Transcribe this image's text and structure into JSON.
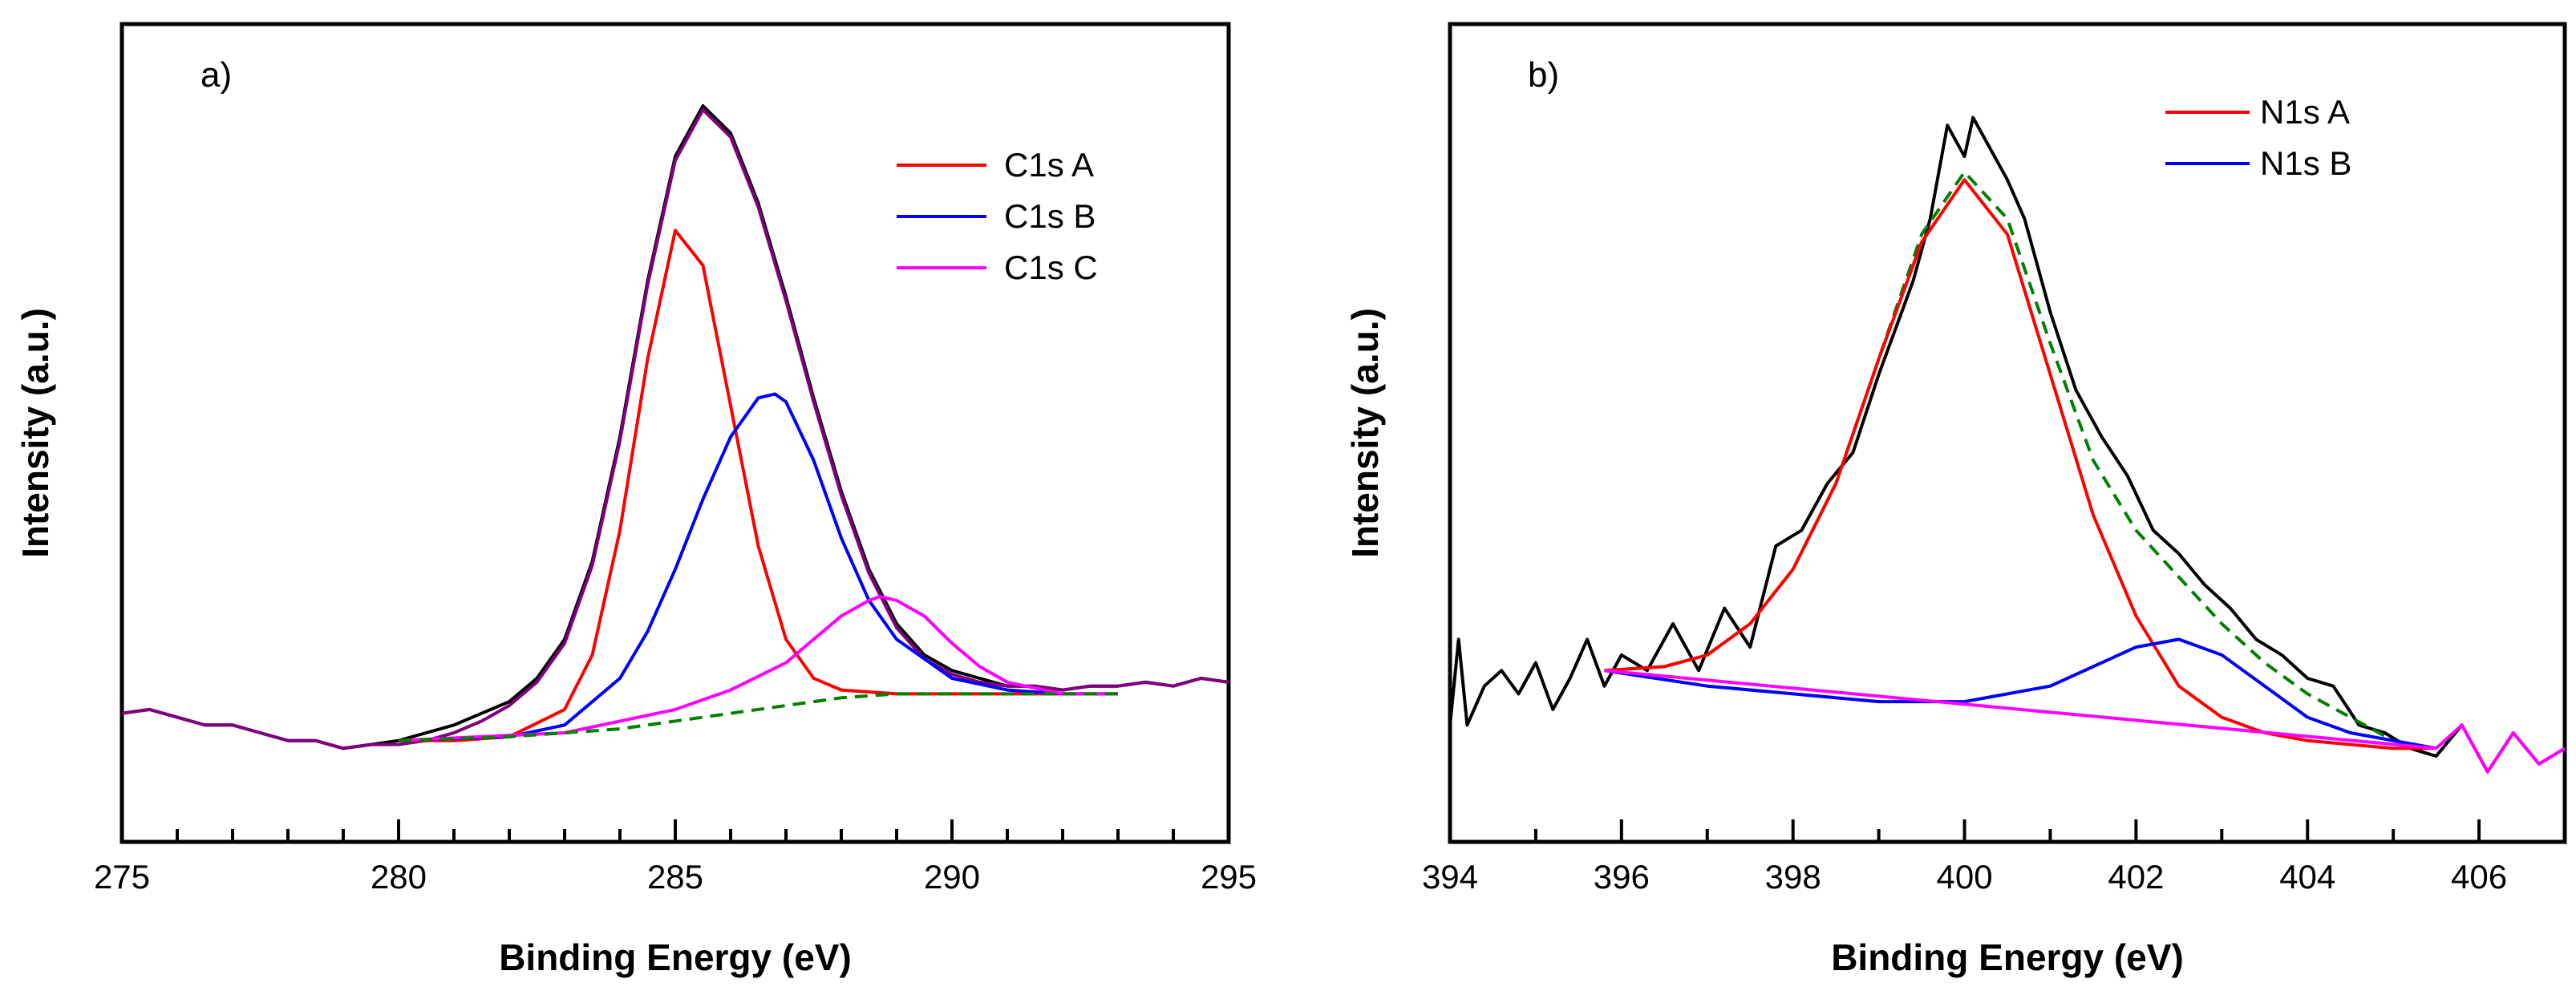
{
  "chart_data": [
    {
      "id": "a",
      "type": "line",
      "panel_label": "a)",
      "xlabel": "Binding Energy (eV)",
      "ylabel": "Intensity (a.u.)",
      "xlim": [
        275,
        295
      ],
      "ylim": [
        0,
        1.05
      ],
      "xticks": [
        275,
        280,
        285,
        290,
        295
      ],
      "xtick_labels": [
        "275",
        "280",
        "285",
        "290",
        "295"
      ],
      "yticks_shown": false,
      "legend_position": "top-right",
      "legend": [
        {
          "label": "C1s A",
          "color": "#ff0000"
        },
        {
          "label": "C1s B",
          "color": "#0000ff"
        },
        {
          "label": "C1s C",
          "color": "#ff00ff"
        }
      ],
      "series": [
        {
          "name": "Raw data",
          "color": "#000000",
          "style": "solid",
          "in_legend": false,
          "x": [
            275,
            275.5,
            276,
            276.5,
            277,
            277.5,
            278,
            278.5,
            279,
            279.5,
            280,
            280.5,
            281,
            281.5,
            282,
            282.5,
            283,
            283.5,
            284,
            284.5,
            285,
            285.5,
            286,
            286.5,
            287,
            287.5,
            288,
            288.5,
            289,
            289.5,
            290,
            290.5,
            291,
            291.5,
            292,
            292.5,
            293,
            293.5,
            294,
            294.5,
            295
          ],
          "y": [
            0.165,
            0.17,
            0.16,
            0.15,
            0.15,
            0.14,
            0.13,
            0.13,
            0.12,
            0.125,
            0.13,
            0.14,
            0.15,
            0.165,
            0.18,
            0.21,
            0.26,
            0.36,
            0.52,
            0.72,
            0.88,
            0.945,
            0.91,
            0.82,
            0.7,
            0.57,
            0.45,
            0.35,
            0.28,
            0.24,
            0.22,
            0.21,
            0.2,
            0.2,
            0.195,
            0.2,
            0.2,
            0.205,
            0.2,
            0.21,
            0.205
          ]
        },
        {
          "name": "Envelope",
          "color": "#800080",
          "style": "solid",
          "in_legend": false,
          "x": [
            275,
            275.5,
            276,
            276.5,
            277,
            277.5,
            278,
            278.5,
            279,
            279.5,
            280,
            280.5,
            281,
            281.5,
            282,
            282.5,
            283,
            283.5,
            284,
            284.5,
            285,
            285.5,
            286,
            286.5,
            287,
            287.5,
            288,
            288.5,
            289,
            289.5,
            290,
            290.5,
            291,
            291.5,
            292,
            292.5,
            293,
            293.5,
            294,
            294.5,
            295
          ],
          "y": [
            0.165,
            0.17,
            0.16,
            0.15,
            0.15,
            0.14,
            0.13,
            0.13,
            0.12,
            0.125,
            0.125,
            0.13,
            0.14,
            0.155,
            0.175,
            0.205,
            0.255,
            0.355,
            0.515,
            0.715,
            0.875,
            0.94,
            0.905,
            0.815,
            0.695,
            0.565,
            0.445,
            0.345,
            0.275,
            0.235,
            0.215,
            0.205,
            0.2,
            0.2,
            0.195,
            0.2,
            0.2,
            0.205,
            0.2,
            0.21,
            0.205
          ]
        },
        {
          "name": "C1s A",
          "color": "#ff0000",
          "style": "solid",
          "in_legend": true,
          "x": [
            280,
            281,
            282,
            283,
            283.5,
            284,
            284.5,
            285,
            285.5,
            286,
            286.5,
            287,
            287.5,
            288,
            289,
            290,
            291,
            292,
            293
          ],
          "y": [
            0.13,
            0.13,
            0.135,
            0.17,
            0.24,
            0.4,
            0.62,
            0.785,
            0.74,
            0.56,
            0.38,
            0.26,
            0.21,
            0.195,
            0.19,
            0.19,
            0.19,
            0.19,
            0.19
          ]
        },
        {
          "name": "C1s B",
          "color": "#0000ff",
          "style": "solid",
          "in_legend": true,
          "x": [
            280,
            282,
            283,
            284,
            284.5,
            285,
            285.5,
            286,
            286.5,
            286.8,
            287,
            287.5,
            288,
            288.5,
            289,
            290,
            291,
            292,
            293
          ],
          "y": [
            0.13,
            0.135,
            0.15,
            0.21,
            0.27,
            0.35,
            0.44,
            0.52,
            0.57,
            0.575,
            0.565,
            0.49,
            0.39,
            0.31,
            0.26,
            0.21,
            0.195,
            0.19,
            0.19
          ]
        },
        {
          "name": "C1s C",
          "color": "#ff00ff",
          "style": "solid",
          "in_legend": true,
          "x": [
            280,
            283,
            285,
            286,
            287,
            287.5,
            288,
            288.5,
            288.7,
            289,
            289.5,
            290,
            290.5,
            291,
            292,
            293
          ],
          "y": [
            0.13,
            0.14,
            0.17,
            0.195,
            0.23,
            0.26,
            0.29,
            0.31,
            0.315,
            0.31,
            0.29,
            0.255,
            0.225,
            0.205,
            0.19,
            0.19
          ]
        },
        {
          "name": "Baseline",
          "color": "#008000",
          "style": "dashed",
          "in_legend": false,
          "x": [
            280,
            282,
            284,
            286,
            287,
            288,
            289,
            290,
            292,
            293
          ],
          "y": [
            0.13,
            0.135,
            0.145,
            0.165,
            0.175,
            0.185,
            0.19,
            0.19,
            0.19,
            0.19
          ]
        }
      ]
    },
    {
      "id": "b",
      "type": "line",
      "panel_label": "b)",
      "xlabel": "Binding Energy (eV)",
      "ylabel": "Intensity (a.u.)",
      "xlim": [
        394,
        407
      ],
      "ylim": [
        0,
        1.05
      ],
      "xticks": [
        394,
        396,
        398,
        400,
        402,
        404,
        406
      ],
      "xtick_labels": [
        "394",
        "396",
        "398",
        "400",
        "402",
        "404",
        "406"
      ],
      "yticks_shown": false,
      "legend_position": "top-right",
      "legend": [
        {
          "label": "N1s A",
          "color": "#ff0000"
        },
        {
          "label": "N1s B",
          "color": "#0000ff"
        }
      ],
      "series": [
        {
          "name": "Raw data",
          "color": "#000000",
          "style": "solid",
          "in_legend": false,
          "x": [
            394,
            394.1,
            394.2,
            394.4,
            394.6,
            394.8,
            395,
            395.2,
            395.4,
            395.6,
            395.8,
            396,
            396.3,
            396.6,
            396.9,
            397.2,
            397.5,
            397.8,
            398.1,
            398.4,
            398.7,
            399,
            399.2,
            399.4,
            399.6,
            399.8,
            400,
            400.1,
            400.3,
            400.5,
            400.7,
            401,
            401.3,
            401.6,
            401.9,
            402.2,
            402.5,
            402.8,
            403.1,
            403.4,
            403.7,
            404,
            404.3,
            404.6,
            404.9,
            405.2,
            405.5,
            405.8,
            406.1,
            406.4,
            406.7,
            407
          ],
          "y": [
            0.15,
            0.26,
            0.15,
            0.2,
            0.22,
            0.19,
            0.23,
            0.17,
            0.21,
            0.26,
            0.2,
            0.24,
            0.22,
            0.28,
            0.22,
            0.3,
            0.25,
            0.38,
            0.4,
            0.46,
            0.5,
            0.6,
            0.66,
            0.72,
            0.8,
            0.92,
            0.88,
            0.93,
            0.89,
            0.85,
            0.8,
            0.68,
            0.58,
            0.52,
            0.47,
            0.4,
            0.37,
            0.33,
            0.3,
            0.26,
            0.24,
            0.21,
            0.2,
            0.15,
            0.14,
            0.12,
            0.11,
            0.15,
            0.09,
            0.14,
            0.1,
            0.12
          ]
        },
        {
          "name": "Envelope",
          "color": "#008000",
          "style": "dashed",
          "in_legend": false,
          "x": [
            395.8,
            396.5,
            397,
            397.5,
            398,
            398.5,
            399,
            399.5,
            400,
            400.5,
            401,
            401.5,
            402,
            402.5,
            403,
            403.5,
            404,
            404.5,
            405,
            405.5
          ],
          "y": [
            0.22,
            0.225,
            0.24,
            0.28,
            0.35,
            0.46,
            0.62,
            0.78,
            0.86,
            0.8,
            0.64,
            0.49,
            0.4,
            0.34,
            0.28,
            0.23,
            0.19,
            0.16,
            0.13,
            0.12
          ]
        },
        {
          "name": "N1s A",
          "color": "#ff0000",
          "style": "solid",
          "in_legend": true,
          "x": [
            395.8,
            396.5,
            397,
            397.5,
            398,
            398.5,
            399,
            399.5,
            400,
            400.5,
            401,
            401.5,
            402,
            402.5,
            403,
            403.5,
            404,
            404.5,
            405,
            405.5
          ],
          "y": [
            0.22,
            0.225,
            0.24,
            0.28,
            0.35,
            0.46,
            0.62,
            0.77,
            0.85,
            0.78,
            0.6,
            0.42,
            0.29,
            0.2,
            0.16,
            0.14,
            0.13,
            0.125,
            0.12,
            0.12
          ]
        },
        {
          "name": "N1s B",
          "color": "#0000ff",
          "style": "solid",
          "in_legend": true,
          "x": [
            395.8,
            397,
            398,
            399,
            400,
            401,
            401.5,
            402,
            402.5,
            403,
            403.5,
            404,
            404.5,
            405,
            405.5
          ],
          "y": [
            0.22,
            0.2,
            0.19,
            0.18,
            0.18,
            0.2,
            0.225,
            0.25,
            0.26,
            0.24,
            0.2,
            0.16,
            0.14,
            0.13,
            0.12
          ]
        },
        {
          "name": "Baseline",
          "color": "#ff00ff",
          "style": "solid",
          "in_legend": false,
          "x": [
            395.8,
            405.5
          ],
          "y": [
            0.22,
            0.12
          ]
        },
        {
          "name": "Baseline noise",
          "color": "#ff00ff",
          "style": "solid",
          "in_legend": false,
          "x": [
            405.5,
            405.8,
            406.1,
            406.4,
            406.7,
            407
          ],
          "y": [
            0.12,
            0.15,
            0.09,
            0.14,
            0.1,
            0.12
          ]
        }
      ]
    }
  ]
}
